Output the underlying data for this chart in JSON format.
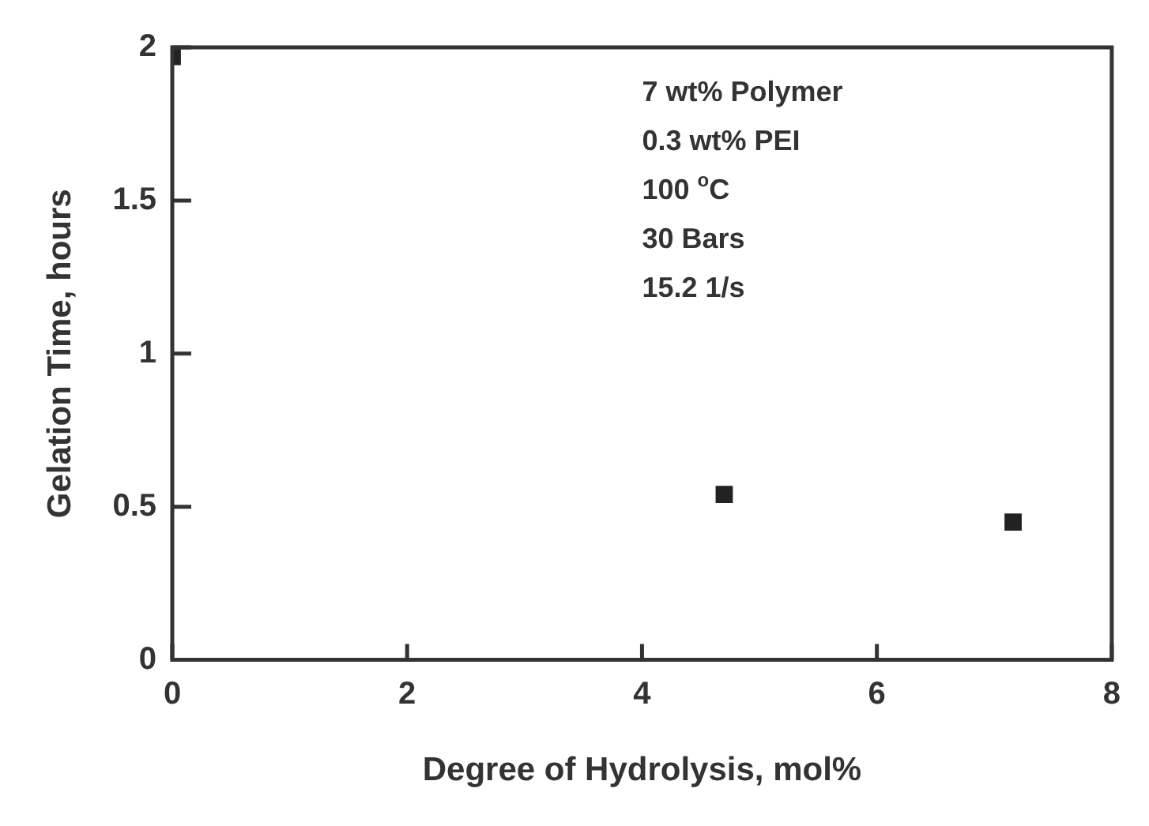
{
  "chart_data": {
    "type": "scatter",
    "xlabel": "Degree of Hydrolysis, mol%",
    "ylabel": "Gelation Time, hours",
    "x": [
      0,
      4.7,
      7.16
    ],
    "values": [
      1.97,
      0.54,
      0.45
    ],
    "color": "#222222",
    "marker": "square",
    "xlim": [
      0,
      8
    ],
    "xticks": [
      0,
      2,
      4,
      6,
      8
    ],
    "ylim": [
      0,
      2
    ],
    "yticks": [
      0,
      0.5,
      1,
      1.5,
      2
    ],
    "grid": false,
    "legend": false,
    "annotations": [
      "7 wt% Polymer",
      "0.3 wt% PEI",
      "100 $^{o}$C",
      "30 Bars",
      "15.2 1/s"
    ]
  }
}
